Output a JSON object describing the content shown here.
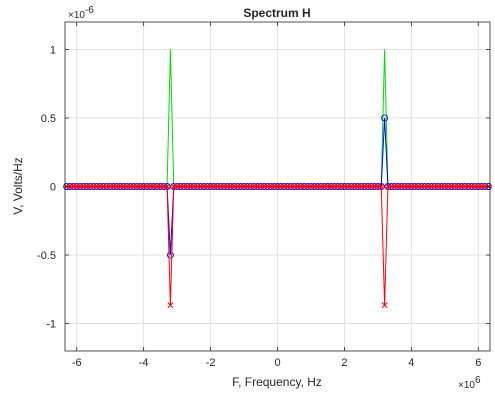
{
  "chart_data": {
    "type": "line",
    "title": "Spectrum H",
    "xlabel": "F, Frequency, Hz",
    "ylabel": "V, Volts/Hz",
    "x_exponent_label": "×10",
    "x_exponent_power": "6",
    "y_exponent_label": "×10",
    "y_exponent_power": "-6",
    "xlim": [
      -6.35,
      6.35
    ],
    "ylim": [
      -1.2,
      1.2
    ],
    "xticks": [
      -6,
      -4,
      -2,
      0,
      2,
      4,
      6
    ],
    "yticks": [
      -1,
      -0.5,
      0,
      0.5,
      1
    ],
    "xtick_labels": [
      "-6",
      "-4",
      "-2",
      "0",
      "2",
      "4",
      "6"
    ],
    "ytick_labels": [
      "-1",
      "-0.5",
      "0",
      "0.5",
      "1"
    ],
    "grid": true,
    "sample_range": [
      -6.3,
      6.3
    ],
    "sample_spacing": 0.1,
    "series": [
      {
        "color": "#00dd00",
        "marker": "none",
        "peaks": [
          {
            "x": -3.2,
            "y": 1.0
          },
          {
            "x": 3.2,
            "y": 1.0
          }
        ]
      },
      {
        "color": "#0000ff",
        "marker": "circle",
        "peaks": [
          {
            "x": -3.2,
            "y": -0.5
          },
          {
            "x": 3.2,
            "y": 0.5
          }
        ]
      },
      {
        "color": "#ff0000",
        "marker": "x",
        "peaks": [
          {
            "x": -3.2,
            "y": -0.866
          },
          {
            "x": 3.2,
            "y": -0.866
          }
        ]
      }
    ]
  }
}
